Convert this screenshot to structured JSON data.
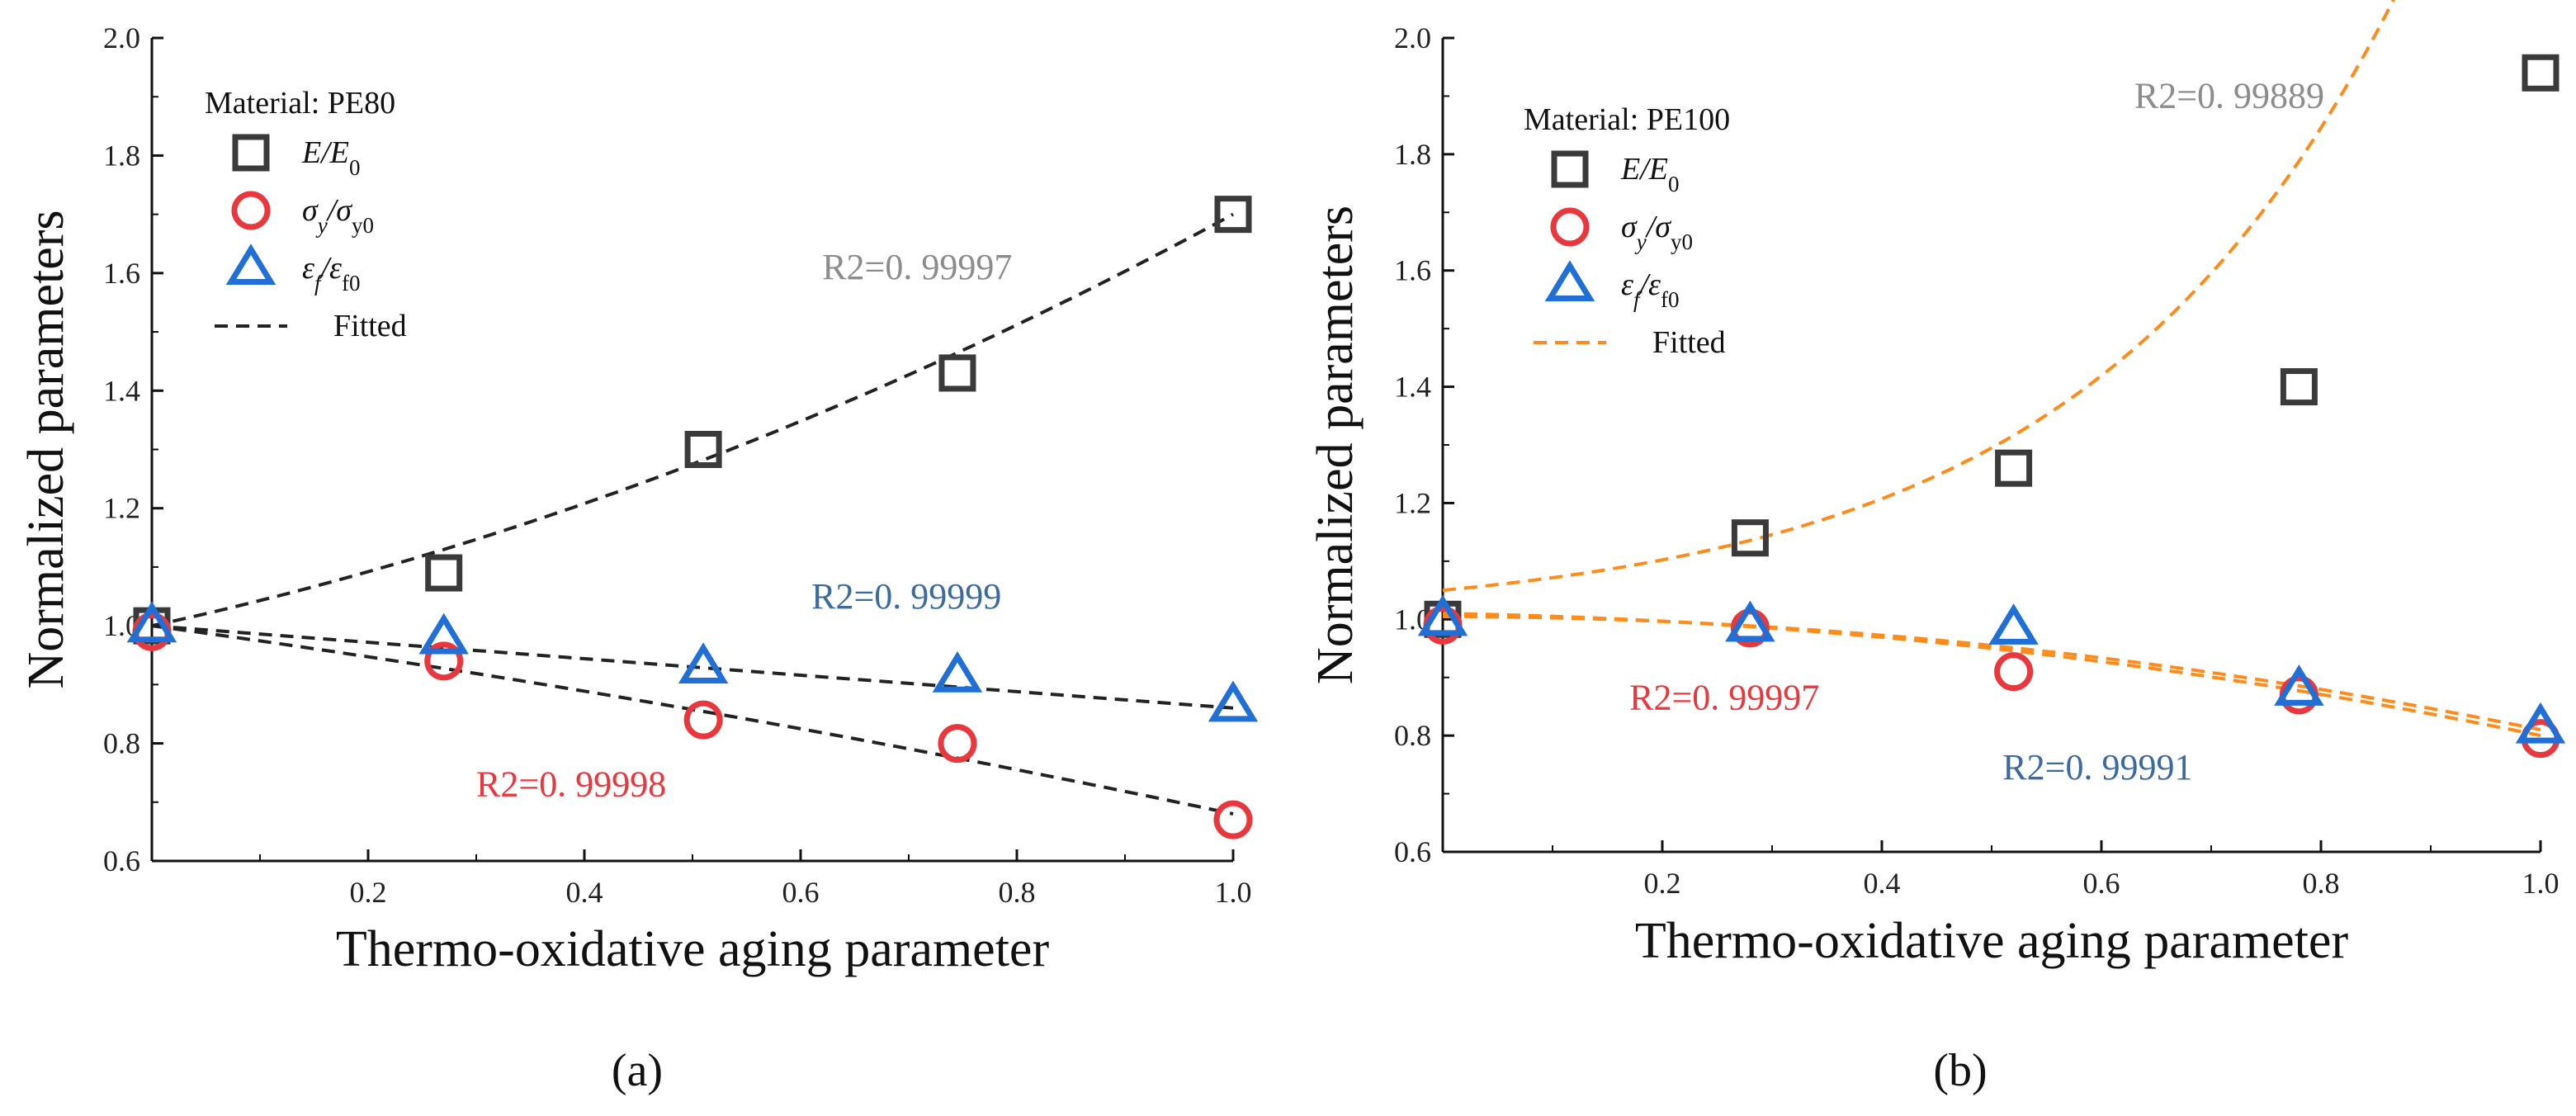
{
  "chart_data": [
    {
      "type": "scatter",
      "panel_label": "(a)",
      "xlabel": "Thermo-oxidative aging parameter",
      "ylabel": "Normalized parameters",
      "xlim": [
        0,
        1.0
      ],
      "ylim": [
        0.6,
        2.0
      ],
      "x_ticks": [
        "0.2",
        "0.4",
        "0.6",
        "0.8",
        "1.0"
      ],
      "y_ticks": [
        "0.6",
        "0.8",
        "1.0",
        "1.2",
        "1.4",
        "1.6",
        "1.8",
        "2.0"
      ],
      "fit_color": "#222222",
      "legend": {
        "title": "Material: PE80",
        "fitted_label": "Fitted",
        "entries": [
          {
            "name": "E/E0",
            "sym": "E/E",
            "sub": "0"
          },
          {
            "name": "σy/σy0",
            "sym": "σ",
            "sub": "y",
            "sym2": "/σ",
            "sub2": "y0"
          },
          {
            "name": "εf/εf0",
            "sym": "ε",
            "sub": "f",
            "sym2": "/ε",
            "sub2": "f0"
          }
        ]
      },
      "series": [
        {
          "name": "E/E0",
          "marker": "square",
          "color": "#3a3a3a",
          "x": [
            0,
            0.27,
            0.51,
            0.745,
            1.0
          ],
          "values": [
            1.0,
            1.09,
            1.3,
            1.43,
            1.7
          ],
          "fit": {
            "type": "quadratic",
            "coef": [
              1.0,
              0.4,
              0.3
            ]
          }
        },
        {
          "name": "σy/σy0",
          "marker": "circle",
          "color": "#e8383d",
          "x": [
            0,
            0.27,
            0.51,
            0.745,
            1.0
          ],
          "values": [
            0.99,
            0.94,
            0.84,
            0.8,
            0.67
          ],
          "fit": {
            "type": "quadratic",
            "coef": [
              1.0,
              -0.25,
              -0.07
            ]
          }
        },
        {
          "name": "εf/εf0",
          "marker": "triangle",
          "color": "#1f6fd6",
          "x": [
            0,
            0.27,
            0.51,
            0.745,
            1.0
          ],
          "values": [
            1.0,
            0.98,
            0.93,
            0.915,
            0.865
          ],
          "fit": {
            "type": "quadratic",
            "coef": [
              1.0,
              -0.14,
              0.0
            ]
          }
        }
      ],
      "annotations": [
        {
          "text": "R2=0. 99997",
          "color": "#8c8c8c",
          "x": 0.62,
          "y": 1.59
        },
        {
          "text": "R2=0. 99999",
          "color": "#3b6aa0",
          "x": 0.61,
          "y": 1.03
        },
        {
          "text": "R2=0. 99998",
          "color": "#e8383d",
          "x": 0.3,
          "y": 0.71
        }
      ]
    },
    {
      "type": "scatter",
      "panel_label": "(b)",
      "xlabel": "Thermo-oxidative aging parameter",
      "ylabel": "Normalized parameters",
      "xlim": [
        0,
        1.0
      ],
      "ylim": [
        0.6,
        2.0
      ],
      "x_ticks": [
        "0.2",
        "0.4",
        "0.6",
        "0.8",
        "1.0"
      ],
      "y_ticks": [
        "0.6",
        "0.8",
        "1.0",
        "1.2",
        "1.4",
        "1.6",
        "1.8",
        "2.0"
      ],
      "fit_color": "#ff8c1a",
      "legend": {
        "title": "Material: PE100",
        "fitted_label": "Fitted",
        "entries": [
          {
            "name": "E/E0",
            "sym": "E/E",
            "sub": "0"
          },
          {
            "name": "σy/σy0",
            "sym": "σ",
            "sub": "y",
            "sym2": "/σ",
            "sub2": "y0"
          },
          {
            "name": "εf/εf0",
            "sym": "ε",
            "sub": "f",
            "sym2": "/ε",
            "sub2": "f0"
          }
        ]
      },
      "series": [
        {
          "name": "E/E0",
          "marker": "square",
          "color": "#3a3a3a",
          "x": [
            0,
            0.28,
            0.52,
            0.78,
            1.0
          ],
          "values": [
            1.0,
            1.14,
            1.26,
            1.4,
            1.94
          ],
          "fit": {
            "type": "exp",
            "coef": [
              0.9985,
              0.0515,
              3.5
            ]
          }
        },
        {
          "name": "σy/σy0",
          "marker": "circle",
          "color": "#e8383d",
          "x": [
            0,
            0.28,
            0.52,
            0.78,
            1.0
          ],
          "values": [
            0.99,
            0.985,
            0.91,
            0.87,
            0.795
          ],
          "fit": {
            "type": "quadratic",
            "coef": [
              1.01,
              -0.03,
              -0.18
            ]
          }
        },
        {
          "name": "εf/εf0",
          "marker": "triangle",
          "color": "#1f6fd6",
          "x": [
            0,
            0.28,
            0.52,
            0.78,
            1.0
          ],
          "values": [
            1.0,
            0.99,
            0.985,
            0.88,
            0.815
          ],
          "fit": {
            "type": "quadratic",
            "coef": [
              1.005,
              -0.005,
              -0.19
            ]
          }
        }
      ],
      "annotations": [
        {
          "text": "R2=0. 99889",
          "color": "#8c8c8c",
          "x": 0.63,
          "y": 1.88
        },
        {
          "text": "R2=0. 99997",
          "color": "#e8383d",
          "x": 0.17,
          "y": 0.845
        },
        {
          "text": "R2=0. 99991",
          "color": "#3b6aa0",
          "x": 0.51,
          "y": 0.725
        }
      ]
    }
  ]
}
